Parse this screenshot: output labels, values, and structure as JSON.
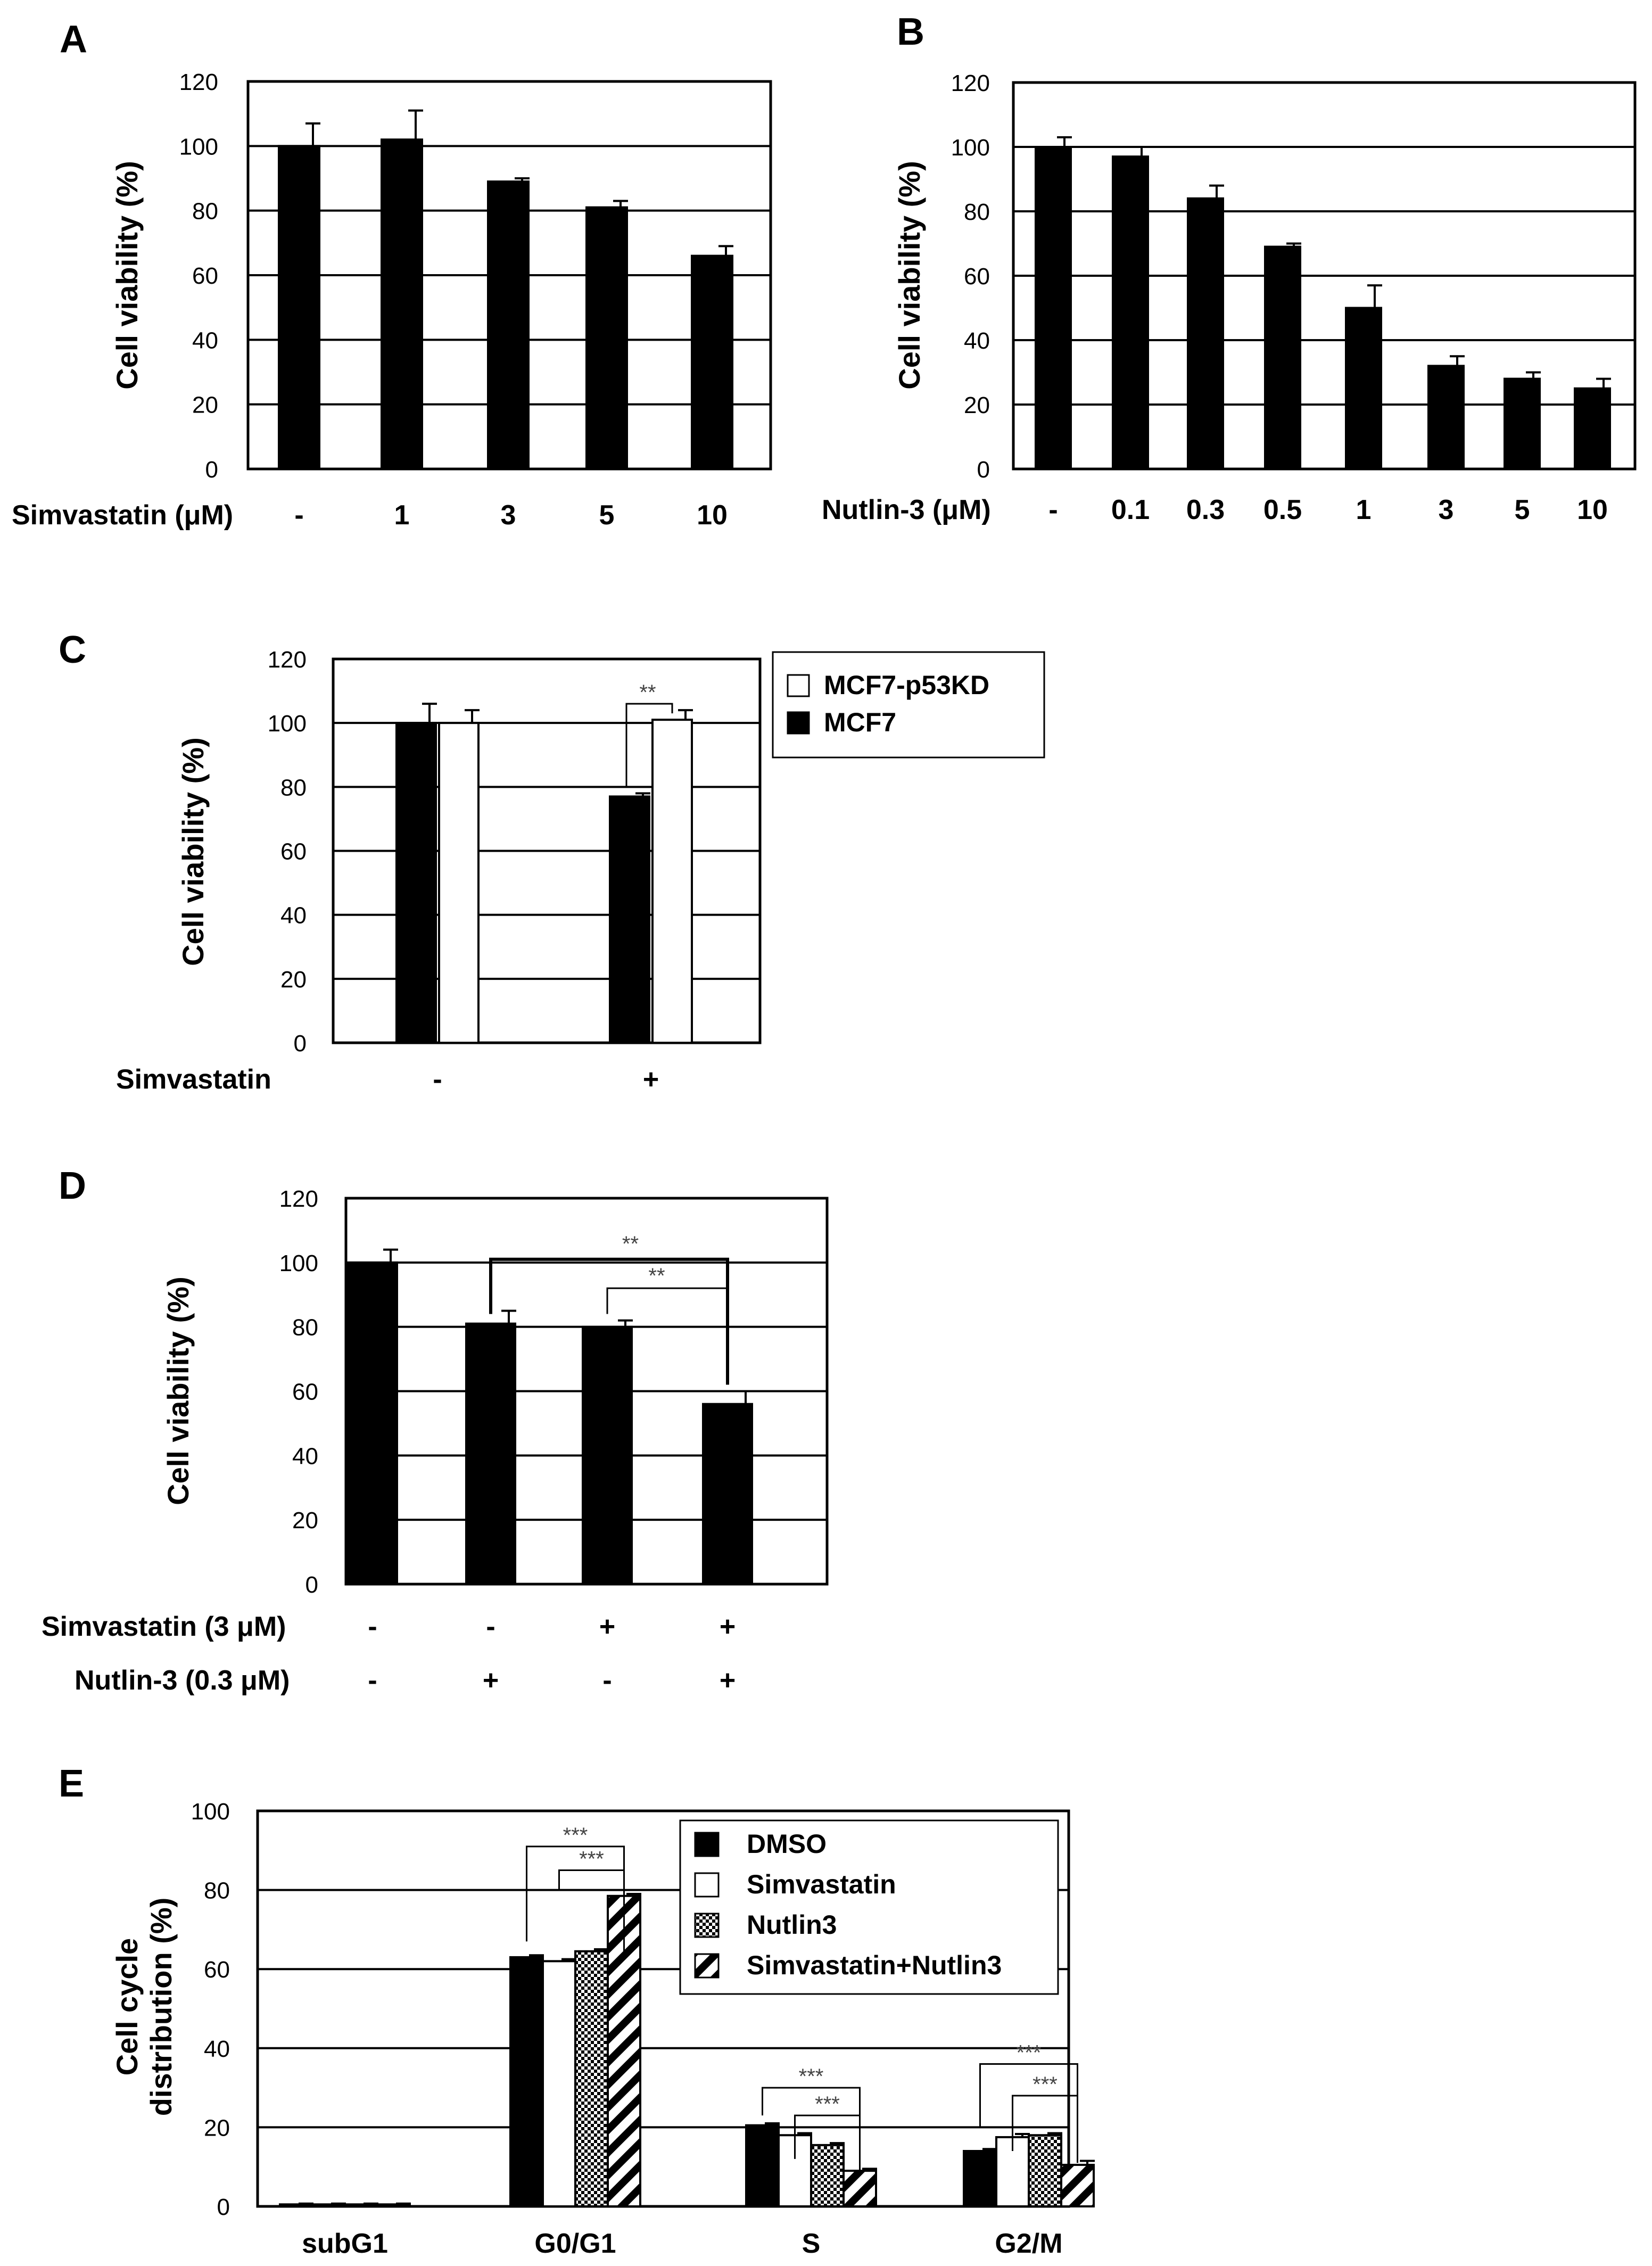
{
  "colors": {
    "black": "#000000",
    "white": "#ffffff",
    "grid": "#000000",
    "annotation": "#444444"
  },
  "chart_data": [
    {
      "panel": "A",
      "type": "bar",
      "ylabel": "Cell  viability (%)",
      "ylim": [
        0,
        120
      ],
      "yticks": [
        "0",
        "20",
        "40",
        "60",
        "80",
        "100",
        "120"
      ],
      "xlabel": "Simvastatin (μM)",
      "categories": [
        "-",
        "1",
        "3",
        "5",
        "10"
      ],
      "series": [
        {
          "name": "Simvastatin",
          "fill": "black",
          "values": [
            100,
            102,
            89,
            81,
            66
          ],
          "errors": [
            7,
            9,
            1,
            2,
            3
          ]
        }
      ]
    },
    {
      "panel": "B",
      "type": "bar",
      "ylabel": "Cell  viability (%)",
      "ylim": [
        0,
        120
      ],
      "yticks": [
        "0",
        "20",
        "40",
        "60",
        "80",
        "100",
        "120"
      ],
      "xlabel": "Nutlin-3 (μM)",
      "categories": [
        "-",
        "0.1",
        "0.3",
        "0.5",
        "1",
        "3",
        "5",
        "10"
      ],
      "series": [
        {
          "name": "Nutlin-3",
          "fill": "black",
          "values": [
            100,
            97,
            84,
            69,
            50,
            32,
            28,
            25
          ],
          "errors": [
            3,
            3,
            4,
            1,
            7,
            3,
            2,
            3
          ]
        }
      ]
    },
    {
      "panel": "C",
      "type": "bar",
      "ylabel": "Cell  viability (%)",
      "ylim": [
        0,
        120
      ],
      "yticks": [
        "0",
        "20",
        "40",
        "60",
        "80",
        "100",
        "120"
      ],
      "xlabel": "Simvastatin",
      "categories": [
        "-",
        "+"
      ],
      "series": [
        {
          "name": "MCF7",
          "fill": "black",
          "values": [
            100,
            77
          ],
          "errors": [
            6,
            1
          ]
        },
        {
          "name": "MCF7-p53KD",
          "fill": "white",
          "values": [
            100,
            101
          ],
          "errors": [
            4,
            3
          ]
        }
      ],
      "legend": [
        "MCF7-p53KD",
        "MCF7"
      ],
      "annotations": [
        {
          "text": "**"
        }
      ]
    },
    {
      "panel": "D",
      "type": "bar",
      "ylabel": "Cell  viability (%)",
      "ylim": [
        0,
        120
      ],
      "yticks": [
        "0",
        "20",
        "40",
        "60",
        "80",
        "100",
        "120"
      ],
      "row_labels": [
        "Simvastatin (3 μM)",
        "Nutlin-3 (0.3 μM)"
      ],
      "rows": [
        [
          "-",
          "-",
          "+",
          "+"
        ],
        [
          "-",
          "+",
          "-",
          "+"
        ]
      ],
      "series": [
        {
          "name": "viability",
          "fill": "black",
          "values": [
            100,
            81,
            80,
            56
          ],
          "errors": [
            4,
            4,
            2,
            4
          ]
        }
      ],
      "annotations": [
        {
          "text": "**"
        },
        {
          "text": "**"
        }
      ]
    },
    {
      "panel": "E",
      "type": "bar",
      "ylabel": [
        "Cell  cycle",
        "distribution (%)"
      ],
      "ylim": [
        0,
        100
      ],
      "yticks": [
        "0",
        "20",
        "40",
        "60",
        "80",
        "100"
      ],
      "categories": [
        "subG1",
        "G0/G1",
        "S",
        "G2/M"
      ],
      "series": [
        {
          "name": "DMSO",
          "fill": "black",
          "values": [
            0.5,
            63,
            20.5,
            14
          ],
          "errors": [
            0.2,
            0.5,
            0.5,
            0.5
          ]
        },
        {
          "name": "Simvastatin",
          "fill": "white",
          "values": [
            0.5,
            62,
            18,
            17.5
          ],
          "errors": [
            0.2,
            0.5,
            0.5,
            0.8
          ]
        },
        {
          "name": "Nutlin3",
          "fill": "dots",
          "values": [
            0.5,
            64.5,
            15.5,
            18
          ],
          "errors": [
            0.2,
            0.5,
            0.5,
            0.5
          ]
        },
        {
          "name": "Simvastatin+Nutlin3",
          "fill": "hatch",
          "values": [
            0.5,
            78.5,
            9,
            10.5
          ],
          "errors": [
            0.2,
            0.5,
            0.5,
            1
          ]
        }
      ],
      "legend": [
        "DMSO",
        "Simvastatin",
        "Nutlin3",
        "Simvastatin+Nutlin3"
      ],
      "annotations": [
        {
          "text": "***"
        },
        {
          "text": "***"
        },
        {
          "text": "***"
        },
        {
          "text": "***"
        },
        {
          "text": "***"
        },
        {
          "text": "***"
        }
      ]
    }
  ]
}
